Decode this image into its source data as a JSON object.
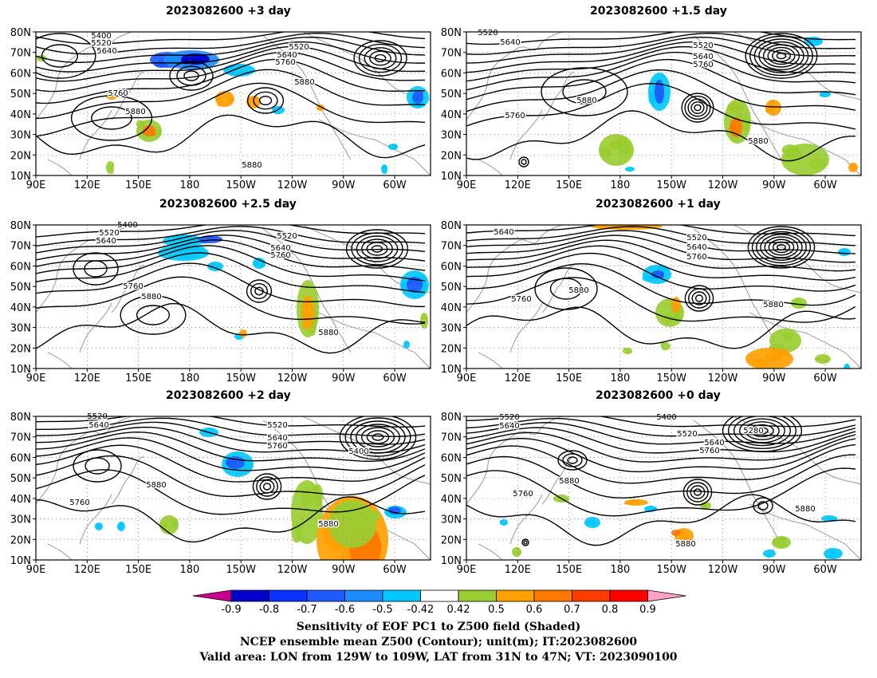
{
  "panels": [
    {
      "title": "2023082600  +3 day",
      "labels": [
        "5400",
        "5520",
        "5640",
        "5520",
        "5640",
        "5760",
        "5880",
        "5760",
        "5880",
        "5880"
      ]
    },
    {
      "title": "2023082600  +1.5  day",
      "labels": [
        "5520",
        "5640",
        "5520",
        "5640",
        "5760",
        "5880",
        "5760",
        "5880"
      ]
    },
    {
      "title": "2023082600  +2.5  day",
      "labels": [
        "5400",
        "5520",
        "5640",
        "5520",
        "5640",
        "5760",
        "5760",
        "5880",
        "5880"
      ]
    },
    {
      "title": "2023082600  +1  day",
      "labels": [
        "5640",
        "5520",
        "5640",
        "5760",
        "5880",
        "5760",
        "5880"
      ]
    },
    {
      "title": "2023082600  +2  day",
      "labels": [
        "5520",
        "5640",
        "5520",
        "5640",
        "5760",
        "5400",
        "5880",
        "5760",
        "5880"
      ]
    },
    {
      "title": "2023082600  +0  day",
      "labels": [
        "5520",
        "5640",
        "5400",
        "5520",
        "5280",
        "5640",
        "5760",
        "5880",
        "5760",
        "5880",
        "5880"
      ]
    }
  ],
  "lat_ticks": [
    "80N",
    "70N",
    "60N",
    "50N",
    "40N",
    "30N",
    "20N",
    "10N"
  ],
  "lon_ticks": [
    "90E",
    "120E",
    "150E",
    "180",
    "150W",
    "120W",
    "90W",
    "60W"
  ],
  "colorbar": {
    "labels": [
      "-0.9",
      "-0.8",
      "-0.7",
      "-0.6",
      "-0.5",
      "-0.42",
      "0.42",
      "0.5",
      "0.6",
      "0.7",
      "0.8",
      "0.9"
    ],
    "colors": [
      "#c8008c",
      "#0000c8",
      "#0a32ff",
      "#1e5aff",
      "#1e8cff",
      "#00c8ff",
      "#ffffff",
      "#9acd32",
      "#ffa000",
      "#ff7800",
      "#ff3c00",
      "#ff0000",
      "#ffa0c8"
    ]
  },
  "caption": [
    "Sensitivity of EOF PC1 to Z500 field (Shaded)",
    "NCEP ensemble mean Z500 (Contour); unit(m); IT:2023082600",
    "Valid area: LON from 129W to 109W, LAT from 31N to 47N; VT: 2023090100"
  ]
}
